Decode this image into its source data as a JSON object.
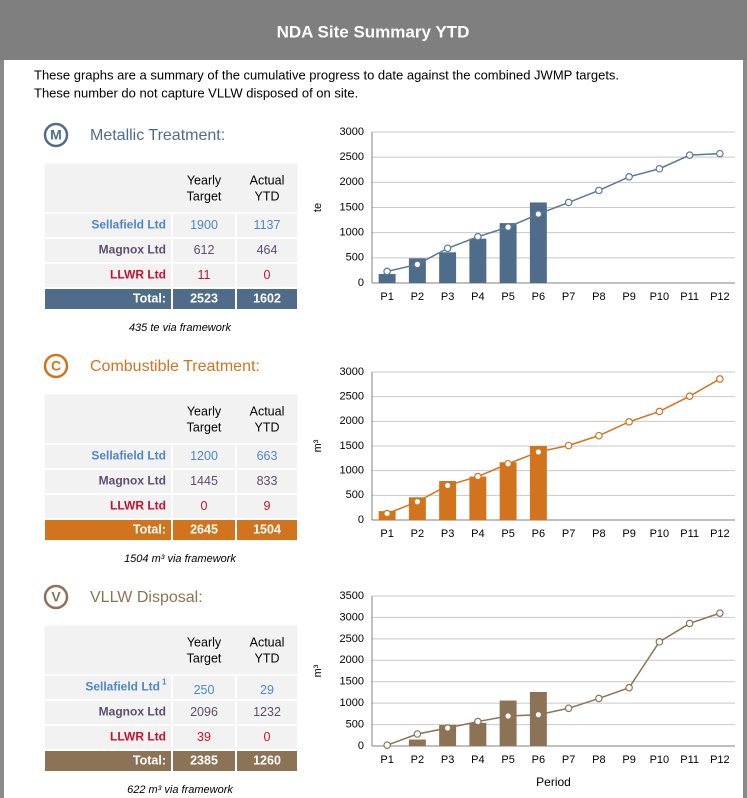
{
  "header": {
    "title": "NDA Site Summary YTD"
  },
  "intro": [
    "These graphs are a summary of the cumulative progress to date against the combined JWMP targets.",
    "These number do not capture VLLW disposed of on site."
  ],
  "sections": [
    {
      "icon": "M",
      "title": "Metallic Treatment:",
      "color": "#4f6d8a",
      "columns": [
        [
          "Yearly",
          "Target"
        ],
        [
          "Actual",
          "YTD"
        ]
      ],
      "rows": [
        {
          "name": "Sellafield Ltd",
          "color": "#4f86c6",
          "target": 1900,
          "actual": 1137
        },
        {
          "name": "Magnox Ltd",
          "color": "#5d4e6e",
          "target": 612,
          "actual": 464
        },
        {
          "name": "LLWR Ltd",
          "color": "#c8102e",
          "target": 11,
          "actual": 0
        }
      ],
      "total": {
        "label": "Total:",
        "target": 2523,
        "actual": 1602
      },
      "note": "435  te via framework"
    },
    {
      "icon": "C",
      "title": "Combustible Treatment:",
      "color": "#d2731e",
      "columns": [
        [
          "Yearly",
          "Target"
        ],
        [
          "Actual",
          "YTD"
        ]
      ],
      "rows": [
        {
          "name": "Sellafield Ltd",
          "color": "#4f86c6",
          "target": 1200,
          "actual": 663
        },
        {
          "name": "Magnox Ltd",
          "color": "#5d4e6e",
          "target": 1445,
          "actual": 833
        },
        {
          "name": "LLWR Ltd",
          "color": "#c8102e",
          "target": 0,
          "actual": 9
        }
      ],
      "total": {
        "label": "Total:",
        "target": 2645,
        "actual": 1504
      },
      "note": "1504  m³ via framework"
    },
    {
      "icon": "V",
      "title": "VLLW Disposal:",
      "color": "#8c7355",
      "columns": [
        [
          "Yearly",
          "Target"
        ],
        [
          "Actual",
          "YTD"
        ]
      ],
      "rows": [
        {
          "name": "Sellafield Ltd",
          "footnote": "1",
          "color": "#4f86c6",
          "target": 250,
          "actual": 29
        },
        {
          "name": "Magnox Ltd",
          "color": "#5d4e6e",
          "target": 2096,
          "actual": 1232
        },
        {
          "name": "LLWR Ltd",
          "color": "#c8102e",
          "target": 39,
          "actual": 0
        }
      ],
      "total": {
        "label": "Total:",
        "target": 2385,
        "actual": 1260
      },
      "note": "622  m³  via framework"
    }
  ],
  "chart_data": [
    {
      "type": "combo",
      "y_label": "te",
      "categories": [
        "P1",
        "P2",
        "P3",
        "P4",
        "P5",
        "P6",
        "P7",
        "P8",
        "P9",
        "P10",
        "P11",
        "P12"
      ],
      "ylim": [
        0,
        3000
      ],
      "yticks": [
        0,
        500,
        1000,
        1500,
        2000,
        2500,
        3000
      ],
      "grid": true,
      "series": [
        {
          "type": "bar",
          "color": "#4f6d8a",
          "values": [
            180,
            490,
            610,
            880,
            1190,
            1600,
            null,
            null,
            null,
            null,
            null,
            null
          ]
        },
        {
          "type": "line",
          "color": "#5a7896",
          "values": [
            230,
            370,
            690,
            920,
            1110,
            1370,
            1600,
            1840,
            2110,
            2270,
            2540,
            2570
          ]
        }
      ]
    },
    {
      "type": "combo",
      "y_label": "m³",
      "categories": [
        "P1",
        "P2",
        "P3",
        "P4",
        "P5",
        "P6",
        "P7",
        "P8",
        "P9",
        "P10",
        "P11",
        "P12"
      ],
      "ylim": [
        0,
        3000
      ],
      "yticks": [
        0,
        500,
        1000,
        1500,
        2000,
        2500,
        3000
      ],
      "grid": true,
      "series": [
        {
          "type": "bar",
          "color": "#d2731e",
          "values": [
            180,
            460,
            790,
            880,
            1170,
            1500,
            null,
            null,
            null,
            null,
            null,
            null
          ]
        },
        {
          "type": "line",
          "color": "#d2731e",
          "values": [
            130,
            370,
            700,
            880,
            1140,
            1380,
            1510,
            1710,
            1990,
            2200,
            2510,
            2860
          ]
        }
      ]
    },
    {
      "type": "combo",
      "y_label": "m³",
      "x_label": "Period",
      "categories": [
        "P1",
        "P2",
        "P3",
        "P4",
        "P5",
        "P6",
        "P7",
        "P8",
        "P9",
        "P10",
        "P11",
        "P12"
      ],
      "ylim": [
        0,
        3500
      ],
      "yticks": [
        0,
        500,
        1000,
        1500,
        2000,
        2500,
        3000,
        3500
      ],
      "grid": true,
      "series": [
        {
          "type": "bar",
          "color": "#8c7355",
          "values": [
            null,
            150,
            490,
            540,
            1060,
            1260,
            null,
            null,
            null,
            null,
            null,
            null
          ]
        },
        {
          "type": "line",
          "color": "#8c7355",
          "values": [
            20,
            280,
            420,
            570,
            700,
            730,
            880,
            1110,
            1360,
            2430,
            2860,
            3100
          ]
        }
      ]
    }
  ]
}
